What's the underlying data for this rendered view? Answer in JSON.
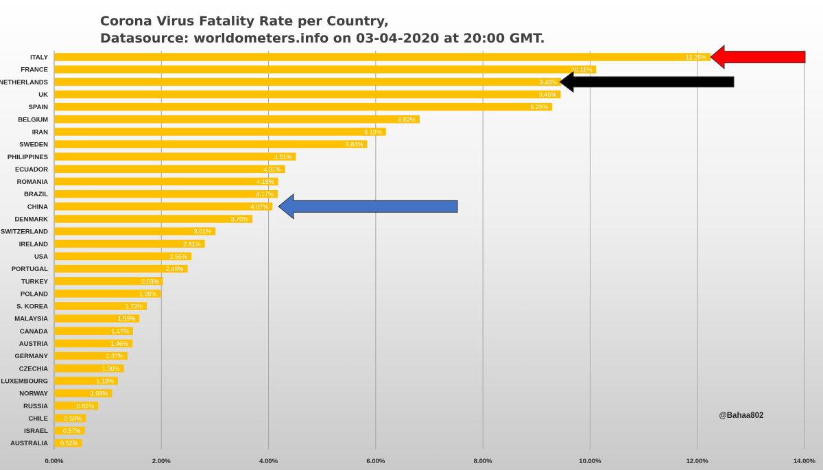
{
  "chart_data": {
    "type": "bar",
    "orientation": "horizontal",
    "title": "Corona Virus Fatality Rate per Country,",
    "subtitle": "Datasource: worldometers.info on 03-04-2020 at 20:00 GMT.",
    "xlabel": "",
    "ylabel": "",
    "xlim": [
      0,
      14
    ],
    "xticks": [
      0,
      2,
      4,
      6,
      8,
      10,
      12,
      14
    ],
    "xtick_labels": [
      "0.00%",
      "2.00%",
      "4.00%",
      "6.00%",
      "8.00%",
      "10.00%",
      "12.00%",
      "14.00%"
    ],
    "grid": "vertical",
    "bar_color": "#FFC000",
    "categories": [
      "ITALY",
      "FRANCE",
      "NETHERLANDS",
      "UK",
      "SPAIN",
      "BELGIUM",
      "IRAN",
      "SWEDEN",
      "PHILIPPINES",
      "ECUADOR",
      "ROMANIA",
      "BRAZIL",
      "CHINA",
      "DENMARK",
      "SWITZERLAND",
      "IRELAND",
      "USA",
      "PORTUGAL",
      "TURKEY",
      "POLAND",
      "S. KOREA",
      "MALAYSIA",
      "CANADA",
      "AUSTRIA",
      "GERMANY",
      "CZECHIA",
      "LUXEMBOURG",
      "NORWAY",
      "RUSSIA",
      "CHILE",
      "ISRAEL",
      "AUSTRALIA"
    ],
    "values": [
      12.25,
      10.11,
      9.46,
      9.45,
      9.29,
      6.82,
      6.19,
      5.84,
      4.51,
      4.31,
      4.18,
      4.17,
      4.07,
      3.7,
      3.01,
      2.81,
      2.56,
      2.49,
      2.03,
      1.99,
      1.73,
      1.59,
      1.47,
      1.46,
      1.37,
      1.3,
      1.19,
      1.08,
      0.82,
      0.59,
      0.57,
      0.52
    ],
    "value_labels": [
      "12.25%",
      "10.11%",
      "9.46%",
      "9.45%",
      "9.29%",
      "6.82%",
      "6.19%",
      "5.84%",
      "4.51%",
      "4.31%",
      "4.18%",
      "4.17%",
      "4.07%",
      "3.70%",
      "3.01%",
      "2.81%",
      "2.56%",
      "2.49%",
      "2.03%",
      "1.99%",
      "1.73%",
      "1.59%",
      "1.47%",
      "1.46%",
      "1.37%",
      "1.30%",
      "1.19%",
      "1.08%",
      "0.82%",
      "0.59%",
      "0.57%",
      "0.52%"
    ],
    "annotations": [
      {
        "type": "arrow",
        "points_to": "ITALY",
        "color": "#FF0000"
      },
      {
        "type": "arrow",
        "points_to": "NETHERLANDS",
        "color": "#000000"
      },
      {
        "type": "arrow",
        "points_to": "CHINA",
        "color": "#4472C4"
      }
    ],
    "watermark": "@Bahaa802"
  }
}
